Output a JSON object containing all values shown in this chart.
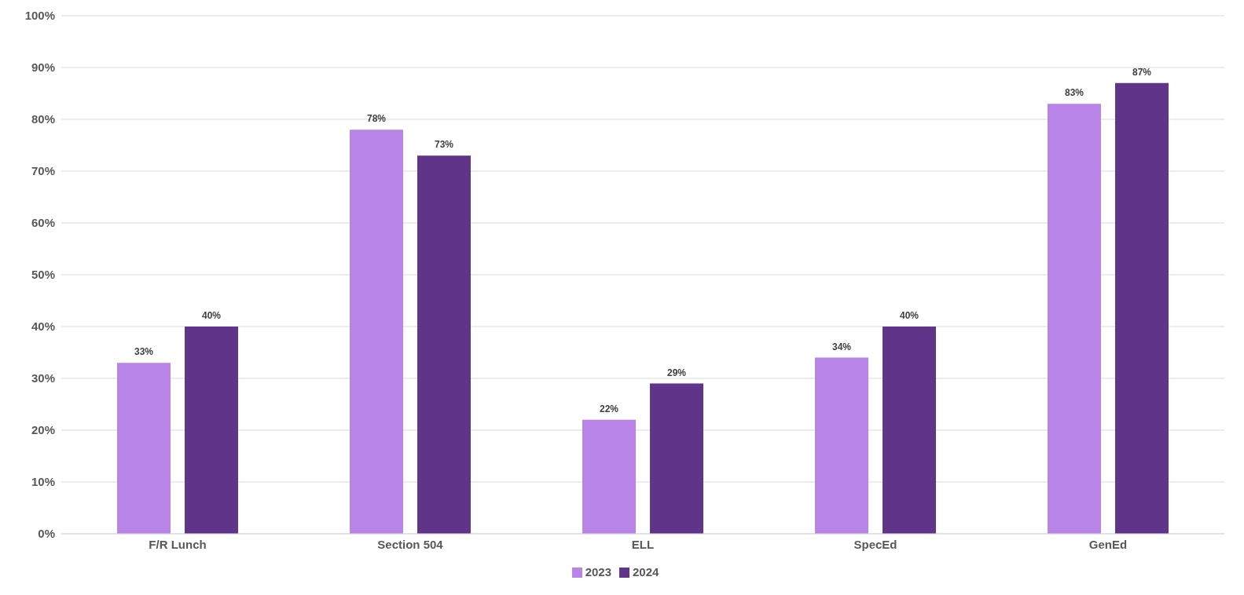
{
  "chart_data": {
    "type": "bar",
    "categories": [
      "F/R Lunch",
      "Section 504",
      "ELL",
      "SpecEd",
      "GenEd"
    ],
    "series": [
      {
        "name": "2023",
        "color": "#b984e8",
        "values": [
          33,
          78,
          22,
          34,
          83
        ],
        "value_labels": [
          "33%",
          "78%",
          "22%",
          "34%",
          "83%"
        ]
      },
      {
        "name": "2024",
        "color": "#5f3489",
        "values": [
          40,
          73,
          29,
          40,
          87
        ],
        "value_labels": [
          "40%",
          "73%",
          "29%",
          "40%",
          "87%"
        ]
      }
    ],
    "ylim": [
      0,
      100
    ],
    "yticks": [
      {
        "value": 0,
        "label": "0%"
      },
      {
        "value": 10,
        "label": "10%"
      },
      {
        "value": 20,
        "label": "20%"
      },
      {
        "value": 30,
        "label": "30%"
      },
      {
        "value": 40,
        "label": "40%"
      },
      {
        "value": 50,
        "label": "50%"
      },
      {
        "value": 60,
        "label": "60%"
      },
      {
        "value": 70,
        "label": "70%"
      },
      {
        "value": 80,
        "label": "80%"
      },
      {
        "value": 90,
        "label": "90%"
      },
      {
        "value": 100,
        "label": "100%"
      }
    ],
    "grid": "y",
    "legend": "bottom"
  }
}
